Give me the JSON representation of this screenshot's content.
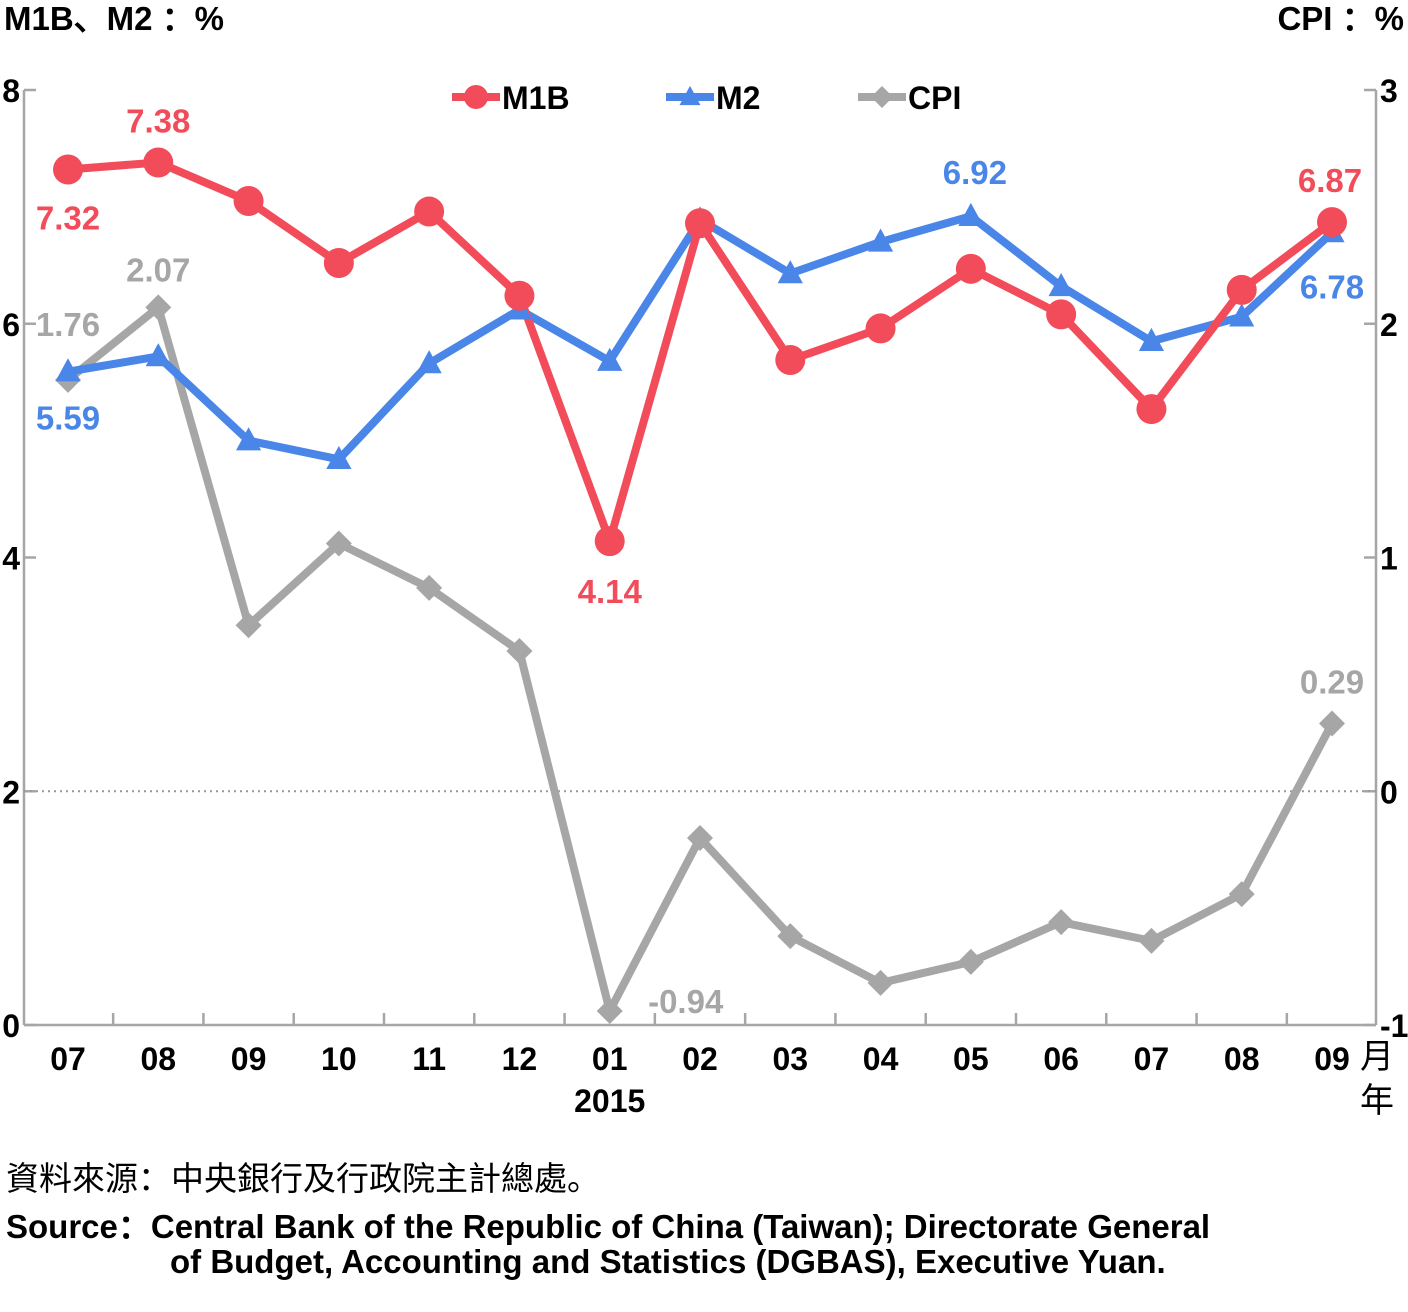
{
  "chart_data": {
    "type": "line",
    "left_axis_label": "M1B、M2 ：%",
    "right_axis_label": "CPI ：%",
    "left_ylim": [
      0,
      8
    ],
    "left_ticks": [
      "0",
      "2",
      "4",
      "6",
      "8"
    ],
    "right_ylim": [
      -1,
      3
    ],
    "right_ticks": [
      "-1",
      "0",
      "1",
      "2",
      "3"
    ],
    "categories": [
      "07",
      "08",
      "09",
      "10",
      "11",
      "12",
      "01",
      "02",
      "03",
      "04",
      "05",
      "06",
      "07",
      "08",
      "09"
    ],
    "year_label": "2015",
    "x_unit_month": "月",
    "x_unit_year": "年",
    "series": [
      {
        "name": "M1B",
        "axis": "left",
        "color": "#f24c5a",
        "marker": "circle",
        "values": [
          7.32,
          7.38,
          7.05,
          6.52,
          6.96,
          6.24,
          4.14,
          6.86,
          5.69,
          5.96,
          6.47,
          6.08,
          5.27,
          6.29,
          6.87
        ]
      },
      {
        "name": "M2",
        "axis": "left",
        "color": "#4a86e8",
        "marker": "triangle",
        "values": [
          5.59,
          5.72,
          5.0,
          4.84,
          5.66,
          6.12,
          5.68,
          6.89,
          6.43,
          6.7,
          6.92,
          6.32,
          5.85,
          6.06,
          6.78
        ]
      },
      {
        "name": "CPI",
        "axis": "right",
        "color": "#a6a6a6",
        "marker": "diamond",
        "values": [
          1.76,
          2.07,
          0.71,
          1.06,
          0.87,
          0.6,
          -0.94,
          -0.2,
          -0.62,
          -0.82,
          -0.73,
          -0.56,
          -0.64,
          -0.44,
          0.29
        ]
      }
    ],
    "data_labels": [
      {
        "series": "M1B",
        "index": 0,
        "text": "7.32"
      },
      {
        "series": "M1B",
        "index": 1,
        "text": "7.38"
      },
      {
        "series": "M1B",
        "index": 6,
        "text": "4.14"
      },
      {
        "series": "M1B",
        "index": 14,
        "text": "6.87"
      },
      {
        "series": "M2",
        "index": 0,
        "text": "5.59"
      },
      {
        "series": "M2",
        "index": 10,
        "text": "6.92"
      },
      {
        "series": "M2",
        "index": 14,
        "text": "6.78"
      },
      {
        "series": "CPI",
        "index": 0,
        "text": "1.76"
      },
      {
        "series": "CPI",
        "index": 1,
        "text": "2.07"
      },
      {
        "series": "CPI",
        "index": 6,
        "text": "-0.94"
      },
      {
        "series": "CPI",
        "index": 14,
        "text": "0.29"
      }
    ],
    "legend_position": "top-center",
    "zero_line": "dotted"
  },
  "source": {
    "zh": "資料來源：中央銀行及行政院主計總處。",
    "en_line1": "Source：Central Bank of the Republic of China (Taiwan); Directorate General",
    "en_line2": "of Budget, Accounting and Statistics (DGBAS), Executive Yuan."
  }
}
